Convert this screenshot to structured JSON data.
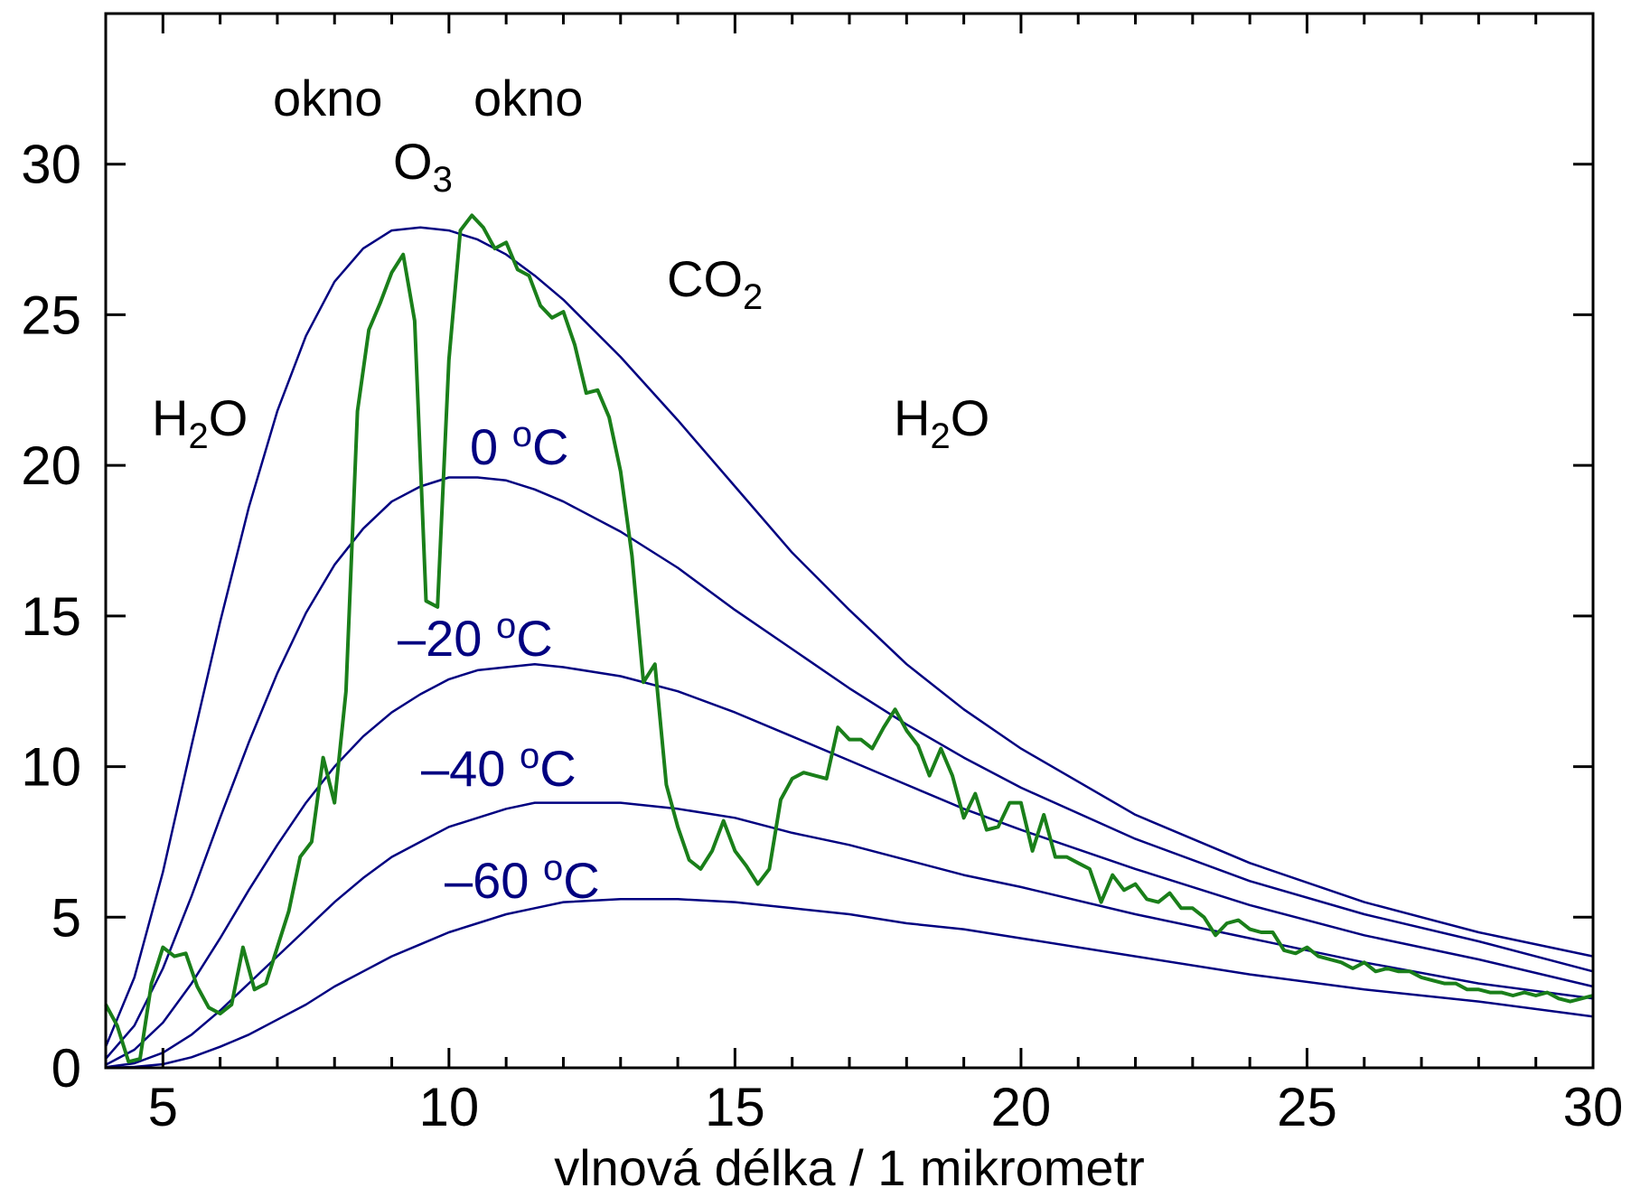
{
  "chart_data": {
    "type": "line",
    "xlabel": "vlnová délka / 1 mikrometr",
    "ylabel": "",
    "xlim": [
      4,
      30
    ],
    "ylim": [
      0,
      35
    ],
    "x_ticks": [
      5,
      10,
      15,
      20,
      25,
      30
    ],
    "y_ticks": [
      0,
      5,
      10,
      15,
      20,
      25,
      30
    ],
    "grid": false,
    "legend": "none",
    "colors": {
      "planck": "#000080",
      "spectrum": "#1a7f1a",
      "text": "#000000",
      "temp_label": "#000080"
    },
    "series": [
      {
        "x": [
          4,
          4.5,
          5,
          5.5,
          6,
          6.5,
          7,
          7.5,
          8,
          8.5,
          9,
          9.5,
          10,
          10.5,
          11,
          11.5,
          12,
          13,
          14,
          15,
          16,
          17,
          18,
          19,
          20,
          22,
          24,
          26,
          28,
          30
        ],
        "y": [
          0.7,
          3.0,
          6.5,
          10.7,
          14.8,
          18.6,
          21.8,
          24.3,
          26.1,
          27.2,
          27.8,
          27.9,
          27.8,
          27.5,
          27.0,
          26.3,
          25.5,
          23.6,
          21.5,
          19.3,
          17.1,
          15.2,
          13.4,
          11.9,
          10.6,
          8.4,
          6.8,
          5.5,
          4.5,
          3.7
        ]
      },
      {
        "x": [
          4,
          4.5,
          5,
          5.5,
          6,
          6.5,
          7,
          7.5,
          8,
          8.5,
          9,
          9.5,
          10,
          10.5,
          11,
          11.5,
          12,
          13,
          14,
          15,
          16,
          17,
          18,
          19,
          20,
          22,
          24,
          26,
          28,
          30
        ],
        "y": [
          0.3,
          1.4,
          3.3,
          5.7,
          8.3,
          10.8,
          13.1,
          15.1,
          16.7,
          17.9,
          18.8,
          19.3,
          19.6,
          19.6,
          19.5,
          19.2,
          18.8,
          17.8,
          16.6,
          15.2,
          13.9,
          12.6,
          11.4,
          10.3,
          9.3,
          7.6,
          6.2,
          5.1,
          4.2,
          3.2
        ]
      },
      {
        "x": [
          4,
          4.5,
          5,
          5.5,
          6,
          6.5,
          7,
          7.5,
          8,
          8.5,
          9,
          9.5,
          10,
          10.5,
          11,
          11.5,
          12,
          13,
          14,
          15,
          16,
          17,
          18,
          19,
          20,
          22,
          24,
          26,
          28,
          30
        ],
        "y": [
          0.1,
          0.6,
          1.5,
          2.8,
          4.3,
          5.9,
          7.4,
          8.8,
          10.0,
          11.0,
          11.8,
          12.4,
          12.9,
          13.2,
          13.3,
          13.4,
          13.3,
          13.0,
          12.5,
          11.8,
          11.0,
          10.2,
          9.4,
          8.6,
          7.9,
          6.6,
          5.4,
          4.4,
          3.6,
          2.7
        ]
      },
      {
        "x": [
          4,
          4.5,
          5,
          5.5,
          6,
          6.5,
          7,
          7.5,
          8,
          8.5,
          9,
          9.5,
          10,
          10.5,
          11,
          11.5,
          12,
          13,
          14,
          15,
          16,
          17,
          18,
          19,
          20,
          22,
          24,
          26,
          28,
          30
        ],
        "y": [
          0.02,
          0.15,
          0.5,
          1.1,
          1.9,
          2.8,
          3.7,
          4.6,
          5.5,
          6.3,
          7.0,
          7.5,
          8.0,
          8.3,
          8.6,
          8.8,
          8.8,
          8.8,
          8.6,
          8.3,
          7.8,
          7.4,
          6.9,
          6.4,
          6.0,
          5.1,
          4.3,
          3.5,
          2.8,
          2.3
        ]
      },
      {
        "x": [
          4,
          4.5,
          5,
          5.5,
          6,
          6.5,
          7,
          7.5,
          8,
          8.5,
          9,
          9.5,
          10,
          10.5,
          11,
          11.5,
          12,
          13,
          14,
          15,
          16,
          17,
          18,
          19,
          20,
          22,
          24,
          26,
          28,
          30
        ],
        "y": [
          0.0,
          0.03,
          0.12,
          0.35,
          0.7,
          1.1,
          1.6,
          2.1,
          2.7,
          3.2,
          3.7,
          4.1,
          4.5,
          4.8,
          5.1,
          5.3,
          5.5,
          5.6,
          5.6,
          5.5,
          5.3,
          5.1,
          4.8,
          4.6,
          4.3,
          3.7,
          3.1,
          2.6,
          2.2,
          1.7
        ]
      },
      {
        "x": [
          4,
          4.2,
          4.4,
          4.6,
          4.8,
          5.0,
          5.2,
          5.4,
          5.6,
          5.8,
          6.0,
          6.2,
          6.4,
          6.6,
          6.8,
          7.0,
          7.2,
          7.4,
          7.6,
          7.8,
          8.0,
          8.2,
          8.4,
          8.6,
          8.8,
          9.0,
          9.2,
          9.4,
          9.6,
          9.8,
          10.0,
          10.2,
          10.4,
          10.6,
          10.8,
          11.0,
          11.2,
          11.4,
          11.6,
          11.8,
          12.0,
          12.2,
          12.4,
          12.6,
          12.8,
          13.0,
          13.2,
          13.4,
          13.6,
          13.8,
          14.0,
          14.2,
          14.4,
          14.6,
          14.8,
          15.0,
          15.2,
          15.4,
          15.6,
          15.8,
          16.0,
          16.2,
          16.4,
          16.6,
          16.8,
          17.0,
          17.2,
          17.4,
          17.6,
          17.8,
          18.0,
          18.2,
          18.4,
          18.6,
          18.8,
          19.0,
          19.2,
          19.4,
          19.6,
          19.8,
          20.0,
          20.2,
          20.4,
          20.6,
          20.8,
          21.0,
          21.2,
          21.4,
          21.6,
          21.8,
          22.0,
          22.2,
          22.4,
          22.6,
          22.8,
          23.0,
          23.2,
          23.4,
          23.6,
          23.8,
          24.0,
          24.2,
          24.4,
          24.6,
          24.8,
          25.0,
          25.2,
          25.4,
          25.6,
          25.8,
          26.0,
          26.2,
          26.4,
          26.6,
          26.8,
          27.0,
          27.2,
          27.4,
          27.6,
          27.8,
          28.0,
          28.2,
          28.4,
          28.6,
          28.8,
          29.0,
          29.2,
          29.4,
          29.6,
          29.8,
          30.0
        ],
        "y": [
          2.1,
          1.4,
          0.2,
          0.3,
          2.8,
          4.0,
          3.7,
          3.8,
          2.7,
          2.0,
          1.8,
          2.1,
          4.0,
          2.6,
          2.8,
          4.0,
          5.2,
          7.0,
          7.5,
          10.3,
          8.8,
          12.5,
          21.8,
          24.5,
          25.4,
          26.4,
          27.0,
          24.8,
          15.5,
          15.3,
          23.5,
          27.8,
          28.3,
          27.9,
          27.2,
          27.4,
          26.5,
          26.3,
          25.3,
          24.9,
          25.1,
          24.0,
          22.4,
          22.5,
          21.6,
          19.8,
          17.0,
          12.8,
          13.4,
          9.4,
          8.0,
          6.9,
          6.6,
          7.2,
          8.2,
          7.2,
          6.7,
          6.1,
          6.6,
          8.9,
          9.6,
          9.8,
          9.7,
          9.6,
          11.3,
          10.9,
          10.9,
          10.6,
          11.3,
          11.9,
          11.2,
          10.7,
          9.7,
          10.6,
          9.7,
          8.3,
          9.1,
          7.9,
          8.0,
          8.8,
          8.8,
          7.2,
          8.4,
          7.0,
          7.0,
          6.8,
          6.6,
          5.5,
          6.4,
          5.9,
          6.1,
          5.6,
          5.5,
          5.8,
          5.3,
          5.3,
          5.0,
          4.4,
          4.8,
          4.9,
          4.6,
          4.5,
          4.5,
          3.9,
          3.8,
          4.0,
          3.7,
          3.6,
          3.5,
          3.3,
          3.5,
          3.2,
          3.3,
          3.2,
          3.2,
          3.0,
          2.9,
          2.8,
          2.8,
          2.6,
          2.6,
          2.5,
          2.5,
          2.4,
          2.5,
          2.4,
          2.5,
          2.3,
          2.2,
          2.3,
          2.4
        ]
      }
    ],
    "annotations": [
      {
        "id": "okno1",
        "text": "okno",
        "color": "black"
      },
      {
        "id": "okno2",
        "text": "okno",
        "color": "black"
      },
      {
        "id": "o3",
        "base": "O",
        "sub": "3",
        "color": "black"
      },
      {
        "id": "co2",
        "base": "CO",
        "sub": "2",
        "color": "black"
      },
      {
        "id": "h2o-left",
        "base": "H",
        "sub": "2",
        "tail": "O",
        "color": "black"
      },
      {
        "id": "h2o-right",
        "base": "H",
        "sub": "2",
        "tail": "O",
        "color": "black"
      },
      {
        "id": "t0",
        "base": "0 ",
        "sup": "o",
        "tail": "C",
        "color": "blue"
      },
      {
        "id": "t20",
        "base": "–20 ",
        "sup": "o",
        "tail": "C",
        "color": "blue"
      },
      {
        "id": "t40",
        "base": "–40 ",
        "sup": "o",
        "tail": "C",
        "color": "blue"
      },
      {
        "id": "t60",
        "base": "–60 ",
        "sup": "o",
        "tail": "C",
        "color": "blue"
      }
    ]
  }
}
